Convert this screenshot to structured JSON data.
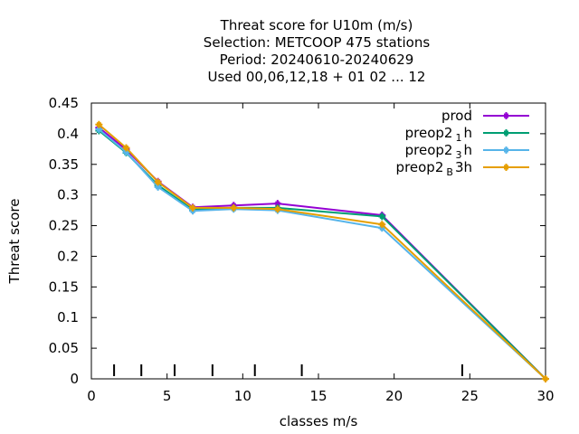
{
  "chart_data": {
    "type": "line",
    "title_lines": [
      "Threat score  for U10m (m/s)",
      "Selection: METCOOP    475 stations",
      "Period: 20240610-20240629",
      "Used  00,06,12,18 + 01 02 ... 12"
    ],
    "xlabel": "classes m/s",
    "ylabel": "Threat score",
    "xlim": [
      0,
      30
    ],
    "ylim": [
      0,
      0.45
    ],
    "x_ticks": [
      "0",
      "5",
      "10",
      "15",
      "20",
      "25",
      "30"
    ],
    "y_ticks": [
      "0",
      "0.05",
      "0.1",
      "0.15",
      "0.2",
      "0.25",
      "0.3",
      "0.35",
      "0.4",
      "0.45"
    ],
    "grid": false,
    "legend_position": "top-right",
    "class_limits": [
      1.5,
      3.3,
      5.5,
      8.0,
      10.8,
      13.9,
      24.5
    ],
    "series": [
      {
        "name": "prod",
        "color": "#9400d3",
        "x": [
          0.5,
          2.3,
          4.4,
          6.7,
          9.4,
          12.3,
          19.2,
          30
        ],
        "y": [
          0.41,
          0.374,
          0.322,
          0.28,
          0.283,
          0.286,
          0.267,
          0.0
        ]
      },
      {
        "name_main": "preop2",
        "name_sub": "1",
        "name_tail": "h",
        "color": "#009e73",
        "x": [
          0.5,
          2.3,
          4.4,
          6.7,
          9.4,
          12.3,
          19.2,
          30
        ],
        "y": [
          0.405,
          0.369,
          0.316,
          0.276,
          0.279,
          0.279,
          0.265,
          0.0
        ]
      },
      {
        "name_main": "preop2",
        "name_sub": "3",
        "name_tail": "h",
        "color": "#56b4e9",
        "x": [
          0.5,
          2.3,
          4.4,
          6.7,
          9.4,
          12.3,
          19.2,
          30
        ],
        "y": [
          0.407,
          0.37,
          0.313,
          0.274,
          0.277,
          0.275,
          0.246,
          0.0
        ]
      },
      {
        "name_main": "preop2",
        "name_sub": "B",
        "name_tail": "3h",
        "color": "#e69f00",
        "x": [
          0.5,
          2.3,
          4.4,
          6.7,
          9.4,
          12.3,
          19.2,
          30
        ],
        "y": [
          0.415,
          0.377,
          0.321,
          0.279,
          0.279,
          0.277,
          0.252,
          0.0
        ]
      }
    ]
  }
}
